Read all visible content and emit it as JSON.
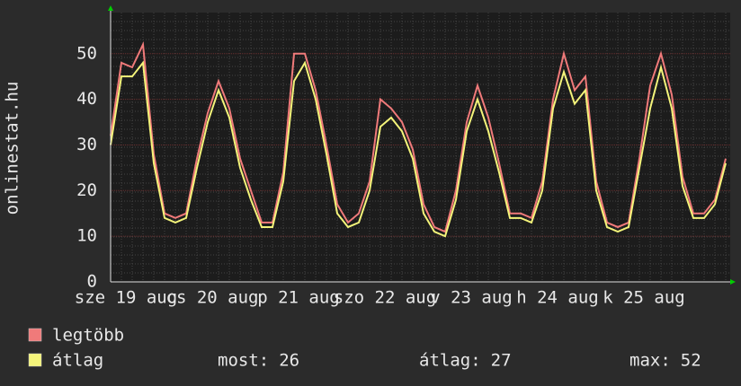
{
  "chart_data": {
    "type": "line",
    "y_label": "onlinestat.hu",
    "date_labels": [
      "sze 19 aug",
      "cs 20 aug",
      "p 21 aug",
      "szo 22 aug",
      "v 23 aug",
      "h 24 aug",
      "k 25 aug"
    ],
    "ylim": [
      0,
      59
    ],
    "yticks": [
      0,
      10,
      20,
      30,
      40,
      50
    ],
    "grid": true,
    "series": [
      {
        "name": "legtöbb",
        "color": "#f07a7a",
        "values": [
          32,
          48,
          47,
          52,
          28,
          15,
          14,
          15,
          27,
          37,
          44,
          38,
          27,
          20,
          13,
          13,
          24,
          50,
          50,
          42,
          30,
          17,
          13,
          15,
          22,
          40,
          38,
          35,
          29,
          17,
          12,
          11,
          20,
          35,
          43,
          36,
          26,
          15,
          15,
          14,
          22,
          40,
          50,
          42,
          45,
          22,
          13,
          12,
          13,
          27,
          43,
          50,
          41,
          23,
          15,
          15,
          18,
          27
        ]
      },
      {
        "name": "átlag",
        "color": "#f4f47a",
        "values": [
          30,
          45,
          45,
          48,
          26,
          14,
          13,
          14,
          25,
          35,
          42,
          36,
          25,
          18,
          12,
          12,
          22,
          44,
          48,
          40,
          28,
          15,
          12,
          13,
          20,
          34,
          36,
          33,
          27,
          15,
          11,
          10,
          18,
          33,
          40,
          33,
          24,
          14,
          14,
          13,
          20,
          38,
          46,
          39,
          42,
          20,
          12,
          11,
          12,
          25,
          38,
          47,
          38,
          21,
          14,
          14,
          17,
          26
        ]
      }
    ],
    "stats": [
      {
        "label": "most:",
        "value": 26
      },
      {
        "label": "átlag:",
        "value": 27
      },
      {
        "label": "max:",
        "value": 52
      }
    ]
  }
}
